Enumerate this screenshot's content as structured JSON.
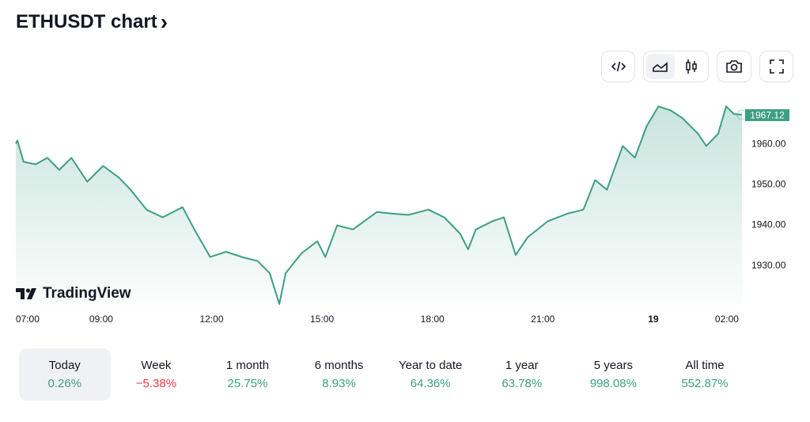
{
  "header": {
    "title": "ETHUSDT chart",
    "chevron": "›"
  },
  "toolbar": {
    "embed": "embed-code",
    "line": "line-chart",
    "candles": "candlestick-chart",
    "snapshot": "camera",
    "fullscreen": "fullscreen"
  },
  "logo": {
    "text": "TradingView"
  },
  "price_label": "1967.12",
  "colors": {
    "line": "#3c9f82",
    "up": "#3c9f82",
    "down": "#f23645"
  },
  "chart_data": {
    "type": "area",
    "title": "ETHUSDT",
    "x_unit": "hours since 07:00",
    "x": [
      -0.32,
      -0.28,
      -0.11,
      0.22,
      0.54,
      0.86,
      1.19,
      1.62,
      2.05,
      2.48,
      2.8,
      3.23,
      3.67,
      4.21,
      4.53,
      4.96,
      5.39,
      5.82,
      6.25,
      6.58,
      6.84,
      7.01,
      7.44,
      7.87,
      8.09,
      8.41,
      8.84,
      9.49,
      9.92,
      10.35,
      10.89,
      11.32,
      11.75,
      11.97,
      12.18,
      12.62,
      12.94,
      13.26,
      13.59,
      14.13,
      14.66,
      15.1,
      15.42,
      15.74,
      16.17,
      16.5,
      16.82,
      17.14,
      17.47,
      17.79,
      18.22,
      18.44,
      18.76,
      18.98,
      19.19,
      19.41
    ],
    "y": [
      1960,
      1960.8,
      1955.5,
      1954.9,
      1956.5,
      1953.5,
      1956.5,
      1950.6,
      1954.5,
      1951.6,
      1948.6,
      1943.7,
      1941.8,
      1944.3,
      1938.8,
      1932,
      1933.3,
      1932,
      1931,
      1928,
      1920.4,
      1928,
      1932.9,
      1935.9,
      1932,
      1939.8,
      1938.8,
      1943.1,
      1942.7,
      1942.4,
      1943.7,
      1941.8,
      1937.8,
      1933.9,
      1938.8,
      1940.8,
      1941.8,
      1932.5,
      1936.9,
      1940.8,
      1942.7,
      1943.7,
      1951,
      1948.6,
      1959.4,
      1956.5,
      1964.3,
      1969.2,
      1968.2,
      1966.3,
      1962.4,
      1959.4,
      1962.4,
      1969.2,
      1967.3,
      1967.12
    ],
    "xlim": [
      -0.32,
      19.41
    ],
    "ylim": [
      1920.2,
      1971.8
    ],
    "x_ticks": [
      {
        "h": 0,
        "label": "07:00"
      },
      {
        "h": 2,
        "label": "09:00"
      },
      {
        "h": 5,
        "label": "12:00"
      },
      {
        "h": 8,
        "label": "15:00"
      },
      {
        "h": 11,
        "label": "18:00"
      },
      {
        "h": 14,
        "label": "21:00"
      },
      {
        "h": 17,
        "label": "19",
        "bold": true
      },
      {
        "h": 19,
        "label": "02:00"
      }
    ],
    "y_ticks": [
      {
        "v": 1960,
        "label": "1960.00"
      },
      {
        "v": 1950,
        "label": "1950.00"
      },
      {
        "v": 1940,
        "label": "1940.00"
      },
      {
        "v": 1930,
        "label": "1930.00"
      }
    ],
    "last_value": 1967.12
  },
  "periods": [
    {
      "label": "Today",
      "value": "0.26%",
      "neg": false
    },
    {
      "label": "Week",
      "value": "−5.38%",
      "neg": true
    },
    {
      "label": "1 month",
      "value": "25.75%",
      "neg": false
    },
    {
      "label": "6 months",
      "value": "8.93%",
      "neg": false
    },
    {
      "label": "Year to date",
      "value": "64.36%",
      "neg": false
    },
    {
      "label": "1 year",
      "value": "63.78%",
      "neg": false
    },
    {
      "label": "5 years",
      "value": "998.08%",
      "neg": false
    },
    {
      "label": "All time",
      "value": "552.87%",
      "neg": false
    }
  ]
}
